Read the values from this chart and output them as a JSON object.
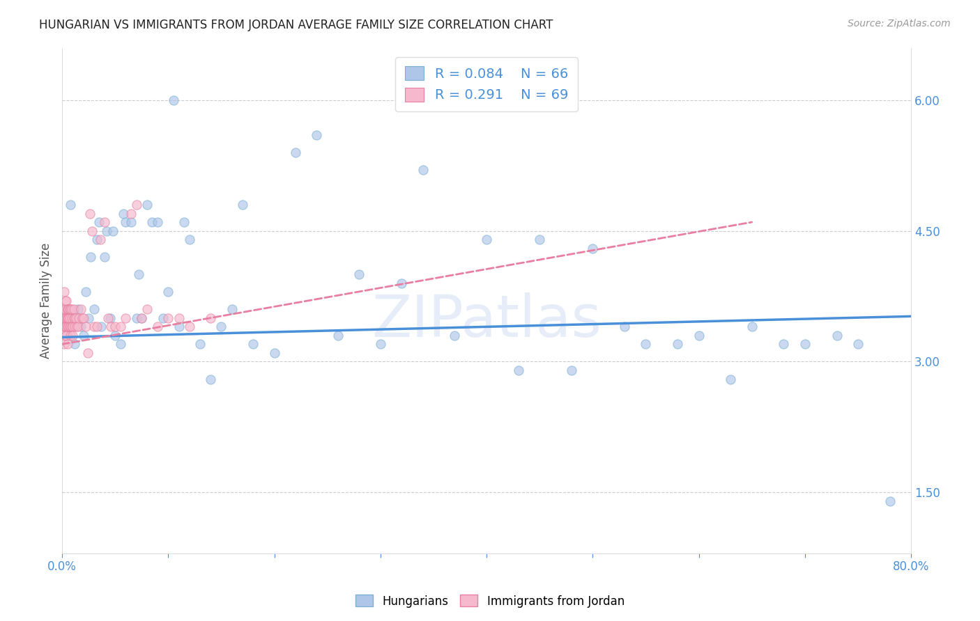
{
  "title": "HUNGARIAN VS IMMIGRANTS FROM JORDAN AVERAGE FAMILY SIZE CORRELATION CHART",
  "source": "Source: ZipAtlas.com",
  "ylabel": "Average Family Size",
  "right_yticks": [
    1.5,
    3.0,
    4.5,
    6.0
  ],
  "right_yticklabels": [
    "1.50",
    "3.00",
    "4.50",
    "6.00"
  ],
  "xmin": 0.0,
  "xmax": 0.8,
  "ymin": 0.8,
  "ymax": 6.6,
  "watermark": "ZIPatlas",
  "legend_r1_val": "0.084",
  "legend_n1_val": "66",
  "legend_r2_val": "0.291",
  "legend_n2_val": "69",
  "blue_color": "#aec6e8",
  "blue_edge": "#7bafd4",
  "pink_color": "#f5b8cc",
  "pink_edge": "#e87fa0",
  "blue_line_color": "#4a90d9",
  "pink_line_color": "#e87fa0",
  "scatter_alpha": 0.65,
  "marker_size": 90,
  "blue_x": [
    0.005,
    0.008,
    0.01,
    0.012,
    0.015,
    0.018,
    0.02,
    0.022,
    0.025,
    0.027,
    0.03,
    0.033,
    0.035,
    0.037,
    0.04,
    0.042,
    0.045,
    0.048,
    0.05,
    0.055,
    0.058,
    0.06,
    0.065,
    0.07,
    0.072,
    0.075,
    0.08,
    0.085,
    0.09,
    0.095,
    0.1,
    0.105,
    0.11,
    0.115,
    0.12,
    0.13,
    0.14,
    0.15,
    0.16,
    0.17,
    0.18,
    0.2,
    0.22,
    0.24,
    0.26,
    0.28,
    0.3,
    0.32,
    0.34,
    0.37,
    0.4,
    0.43,
    0.45,
    0.48,
    0.5,
    0.53,
    0.55,
    0.58,
    0.6,
    0.63,
    0.65,
    0.68,
    0.7,
    0.73,
    0.75,
    0.78
  ],
  "blue_y": [
    3.3,
    4.8,
    3.5,
    3.2,
    3.6,
    3.4,
    3.3,
    3.8,
    3.5,
    4.2,
    3.6,
    4.4,
    4.6,
    3.4,
    4.2,
    4.5,
    3.5,
    4.5,
    3.3,
    3.2,
    4.7,
    4.6,
    4.6,
    3.5,
    4.0,
    3.5,
    4.8,
    4.6,
    4.6,
    3.5,
    3.8,
    6.0,
    3.4,
    4.6,
    4.4,
    3.2,
    2.8,
    3.4,
    3.6,
    4.8,
    3.2,
    3.1,
    5.4,
    5.6,
    3.3,
    4.0,
    3.2,
    3.9,
    5.2,
    3.3,
    4.4,
    2.9,
    4.4,
    2.9,
    4.3,
    3.4,
    3.2,
    3.2,
    3.3,
    2.8,
    3.4,
    3.2,
    3.2,
    3.3,
    3.2,
    1.4
  ],
  "pink_x": [
    0.001,
    0.001,
    0.001,
    0.002,
    0.002,
    0.002,
    0.002,
    0.003,
    0.003,
    0.003,
    0.003,
    0.003,
    0.004,
    0.004,
    0.004,
    0.004,
    0.005,
    0.005,
    0.005,
    0.005,
    0.005,
    0.005,
    0.006,
    0.006,
    0.006,
    0.007,
    0.007,
    0.007,
    0.008,
    0.008,
    0.008,
    0.009,
    0.009,
    0.009,
    0.01,
    0.01,
    0.011,
    0.011,
    0.012,
    0.012,
    0.013,
    0.014,
    0.015,
    0.016,
    0.018,
    0.019,
    0.02,
    0.022,
    0.024,
    0.026,
    0.028,
    0.03,
    0.033,
    0.036,
    0.04,
    0.043,
    0.046,
    0.05,
    0.055,
    0.06,
    0.065,
    0.07,
    0.075,
    0.08,
    0.09,
    0.1,
    0.11,
    0.12,
    0.14
  ],
  "pink_y": [
    3.4,
    3.6,
    3.5,
    3.2,
    3.5,
    3.8,
    3.4,
    3.3,
    3.5,
    3.7,
    3.4,
    3.6,
    3.3,
    3.5,
    3.7,
    3.4,
    3.2,
    3.5,
    3.5,
    3.6,
    3.4,
    3.6,
    3.4,
    3.6,
    3.5,
    3.4,
    3.6,
    3.5,
    3.4,
    3.3,
    3.6,
    3.4,
    3.5,
    3.6,
    3.4,
    3.3,
    3.5,
    3.6,
    3.4,
    3.5,
    3.5,
    3.4,
    3.4,
    3.5,
    3.6,
    3.5,
    3.5,
    3.4,
    3.1,
    4.7,
    4.5,
    3.4,
    3.4,
    4.4,
    4.6,
    3.5,
    3.4,
    3.4,
    3.4,
    3.5,
    4.7,
    4.8,
    3.5,
    3.6,
    3.4,
    3.5,
    3.5,
    3.4,
    3.5
  ]
}
